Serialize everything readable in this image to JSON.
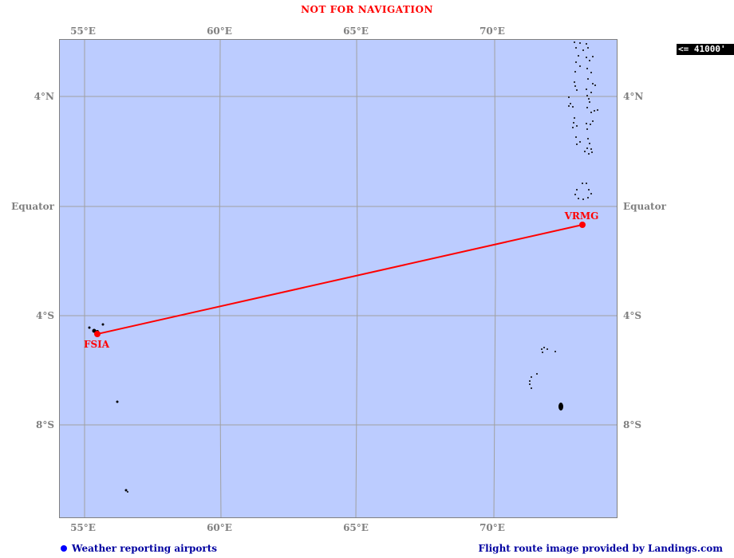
{
  "warning": "NOT FOR NAVIGATION",
  "altitude": "<= 41000'",
  "lon_labels": [
    "55°E",
    "60°E",
    "65°E",
    "70°E"
  ],
  "lat_labels": [
    "4°N",
    "Equator",
    "4°S",
    "8°S"
  ],
  "airports": [
    {
      "code": "FSIA",
      "lat": -4.67,
      "lon": 55.52
    },
    {
      "code": "VRMG",
      "lat": -0.69,
      "lon": 73.16
    }
  ],
  "legend": {
    "label": "Weather reporting airports",
    "dot_color": "#0000ff"
  },
  "credit": "Flight route image provided by Landings.com",
  "colors": {
    "ocean": "#bcccff",
    "route": "#ff0000",
    "grid": "#a0a0a0",
    "land": "#000000"
  }
}
